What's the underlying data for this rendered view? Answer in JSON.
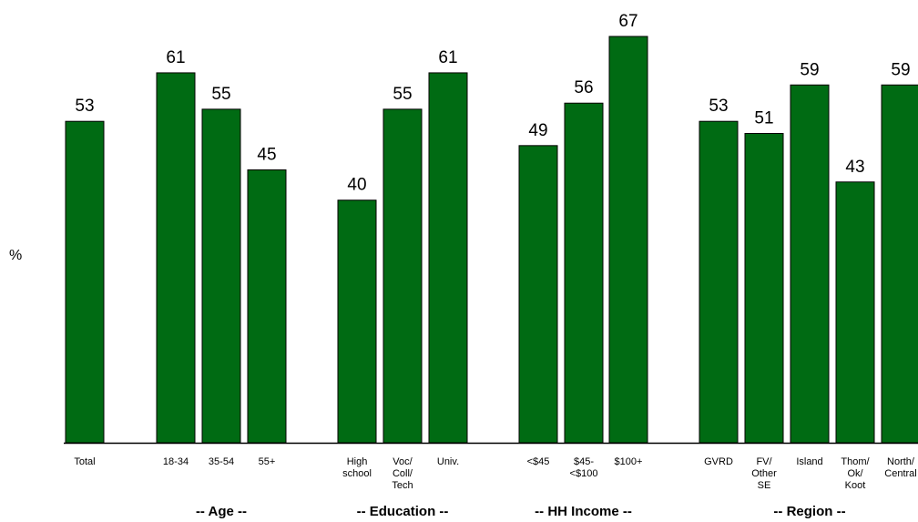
{
  "chart_data": {
    "type": "bar",
    "title": "",
    "ylabel": "%",
    "xlabel": "",
    "ylim": [
      0,
      67
    ],
    "bar_color": "#006b13",
    "grid": false,
    "legend": "none",
    "categories": [
      [
        "Total"
      ],
      [
        "18-34"
      ],
      [
        "35-54"
      ],
      [
        "55+"
      ],
      [
        "High",
        "school"
      ],
      [
        "Voc/",
        "Coll/",
        "Tech"
      ],
      [
        "Univ."
      ],
      [
        "<$45"
      ],
      [
        "$45-",
        "<$100"
      ],
      [
        "$100+"
      ],
      [
        "GVRD"
      ],
      [
        "FV/",
        "Other",
        "SE"
      ],
      [
        "Island"
      ],
      [
        "Thom/",
        "Ok/",
        "Koot"
      ],
      [
        "North/",
        "Central"
      ]
    ],
    "values": [
      53,
      61,
      55,
      45,
      40,
      55,
      61,
      49,
      56,
      67,
      53,
      51,
      59,
      43,
      59
    ],
    "groups": [
      {
        "label": "-- Age --",
        "start": 1,
        "end": 3
      },
      {
        "label": "-- Education --",
        "start": 4,
        "end": 6
      },
      {
        "label": "-- HH Income --",
        "start": 7,
        "end": 9
      },
      {
        "label": "-- Region --",
        "start": 10,
        "end": 14
      }
    ]
  }
}
